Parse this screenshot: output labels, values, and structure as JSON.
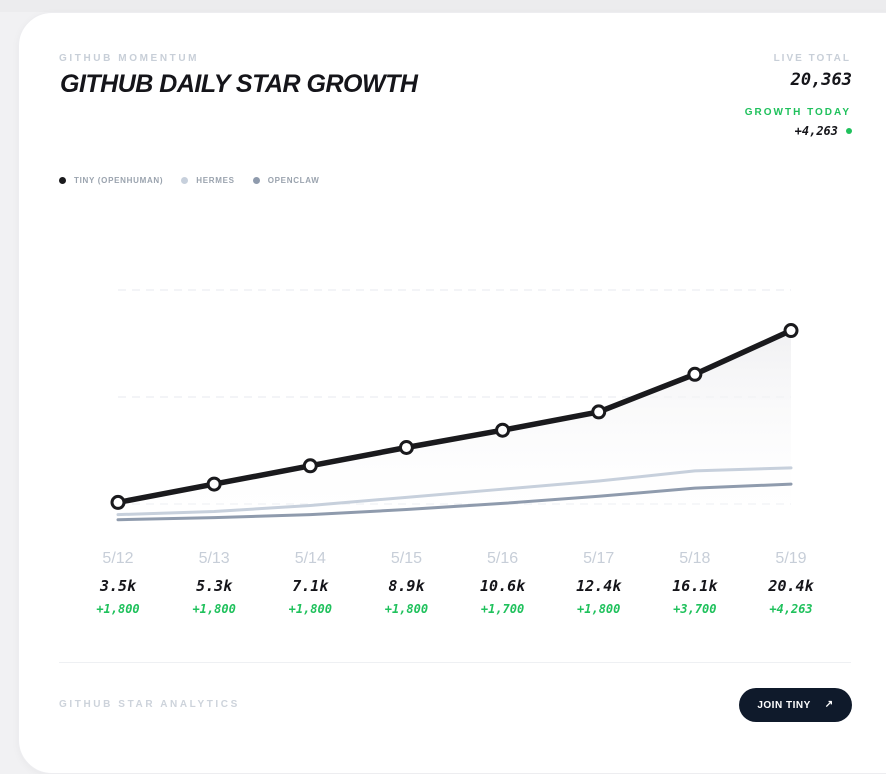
{
  "header": {
    "eyebrow": "GITHUB MOMENTUM",
    "title": "GITHUB DAILY STAR GROWTH"
  },
  "stats": {
    "live_total_label": "LIVE TOTAL",
    "live_total_value": "20,363",
    "growth_today_label": "GROWTH TODAY",
    "growth_today_value": "+4,263"
  },
  "legend": [
    {
      "label": "TINY (OPENHUMAN)",
      "color": "#1a1a1d"
    },
    {
      "label": "HERMES",
      "color": "#c7d0dc"
    },
    {
      "label": "OPENCLAW",
      "color": "#8f9bad"
    }
  ],
  "chart_data": {
    "type": "line",
    "x": [
      "5/12",
      "5/13",
      "5/14",
      "5/15",
      "5/16",
      "5/17",
      "5/18",
      "5/19"
    ],
    "series": [
      {
        "name": "TINY (OPENHUMAN)",
        "color": "#1a1a1d",
        "values": [
          3.5,
          5.3,
          7.1,
          8.9,
          10.6,
          12.4,
          16.1,
          20.4
        ]
      },
      {
        "name": "HERMES",
        "color": "#c7d0dc",
        "values": [
          2.3,
          2.6,
          3.2,
          4.0,
          4.8,
          5.6,
          6.6,
          6.9
        ]
      },
      {
        "name": "OPENCLAW",
        "color": "#8f9bad",
        "values": [
          1.8,
          2.0,
          2.3,
          2.8,
          3.4,
          4.1,
          4.9,
          5.3
        ]
      }
    ],
    "ylim": [
      0,
      23.6
    ],
    "grid": true,
    "value_labels": [
      "3.5k",
      "5.3k",
      "7.1k",
      "8.9k",
      "10.6k",
      "12.4k",
      "16.1k",
      "20.4k"
    ],
    "delta_labels": [
      "+1,800",
      "+1,800",
      "+1,800",
      "+1,800",
      "+1,700",
      "+1,800",
      "+3,700",
      "+4,263"
    ]
  },
  "footer": {
    "label": "GITHUB STAR ANALYTICS",
    "button_label": "JOIN TINY",
    "button_icon": "arrow-up-right-icon"
  }
}
